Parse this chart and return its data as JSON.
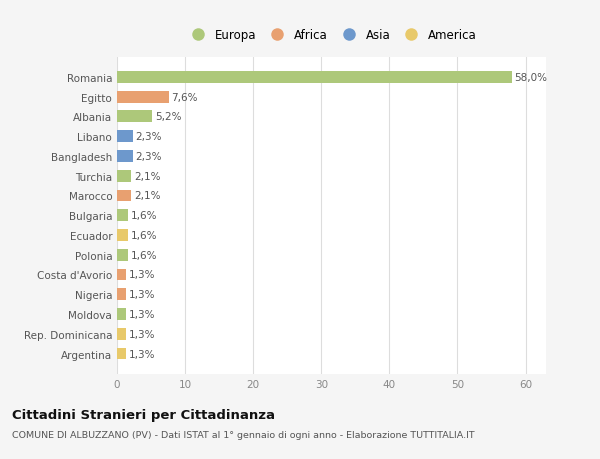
{
  "categories": [
    "Argentina",
    "Rep. Dominicana",
    "Moldova",
    "Nigeria",
    "Costa d'Avorio",
    "Polonia",
    "Ecuador",
    "Bulgaria",
    "Marocco",
    "Turchia",
    "Bangladesh",
    "Libano",
    "Albania",
    "Egitto",
    "Romania"
  ],
  "values": [
    1.3,
    1.3,
    1.3,
    1.3,
    1.3,
    1.6,
    1.6,
    1.6,
    2.1,
    2.1,
    2.3,
    2.3,
    5.2,
    7.6,
    58.0
  ],
  "labels": [
    "1,3%",
    "1,3%",
    "1,3%",
    "1,3%",
    "1,3%",
    "1,6%",
    "1,6%",
    "1,6%",
    "2,1%",
    "2,1%",
    "2,3%",
    "2,3%",
    "5,2%",
    "7,6%",
    "58,0%"
  ],
  "colors": [
    "#e8c96a",
    "#e8c96a",
    "#adc87a",
    "#e8a070",
    "#e8a070",
    "#adc87a",
    "#e8c96a",
    "#adc87a",
    "#e8a070",
    "#adc87a",
    "#6d98cc",
    "#6d98cc",
    "#adc87a",
    "#e8a070",
    "#adc87a"
  ],
  "continent_colors": {
    "Europa": "#adc87a",
    "Africa": "#e8a070",
    "Asia": "#6d98cc",
    "America": "#e8c96a"
  },
  "xlim": [
    0,
    63
  ],
  "xticks": [
    0,
    10,
    20,
    30,
    40,
    50,
    60
  ],
  "title": "Cittadini Stranieri per Cittadinanza",
  "subtitle": "COMUNE DI ALBUZZANO (PV) - Dati ISTAT al 1° gennaio di ogni anno - Elaborazione TUTTITALIA.IT",
  "bg_color": "#f5f5f5",
  "plot_bg_color": "#ffffff",
  "grid_color": "#dddddd"
}
